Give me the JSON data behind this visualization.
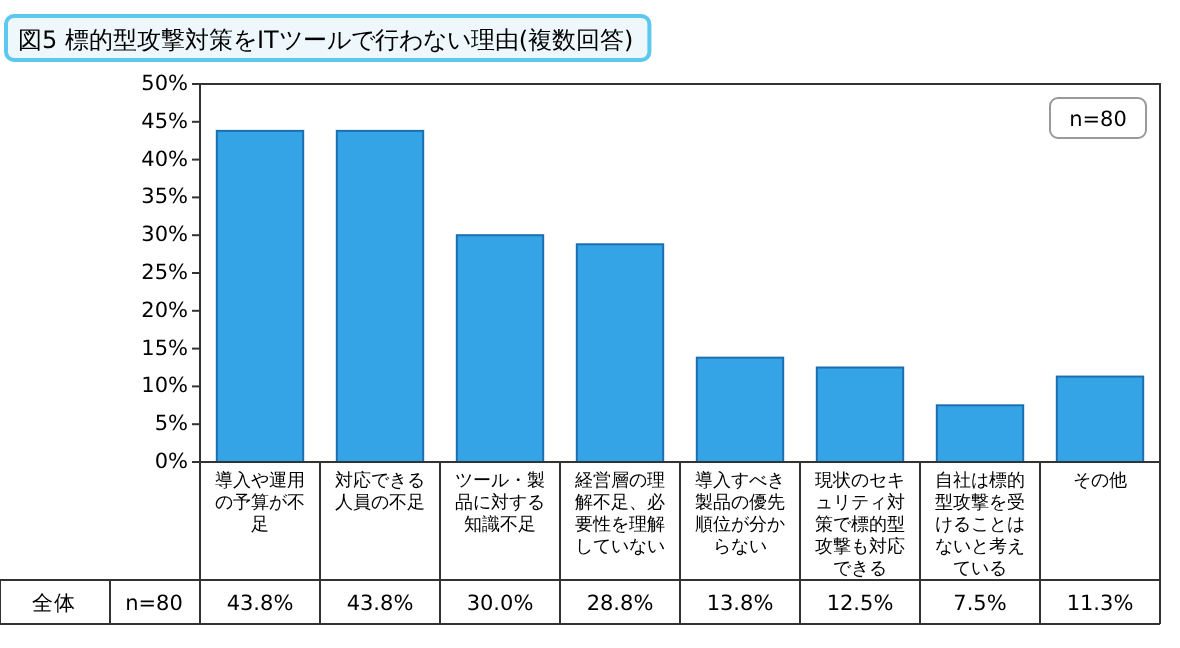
{
  "chart_data": {
    "type": "bar",
    "title": "図5 標的型攻撃対策をITツールで行わない理由(複数回答)",
    "categories": [
      "導入や運用の予算が不足",
      "対応できる人員の不足",
      "ツール・製品に対する知識不足",
      "経営層の理解不足、必要性を理解していない",
      "導入すべき製品の優先順位が分からない",
      "現状のセキュリティ対策で標的型攻撃も対応できる",
      "自社は標的型攻撃を受けることはないと考えている",
      "その他"
    ],
    "values": [
      43.8,
      43.8,
      30.0,
      28.8,
      13.8,
      12.5,
      7.5,
      11.3
    ],
    "value_labels": [
      "43.8%",
      "43.8%",
      "30.0%",
      "28.8%",
      "13.8%",
      "12.5%",
      "7.5%",
      "11.3%"
    ],
    "color": "#35a4e6",
    "ylim": [
      0,
      50
    ],
    "yticks": [
      {
        "value": 0,
        "label": "0%"
      },
      {
        "value": 5,
        "label": "5%"
      },
      {
        "value": 10,
        "label": "10%"
      },
      {
        "value": 15,
        "label": "15%"
      },
      {
        "value": 20,
        "label": "20%"
      },
      {
        "value": 25,
        "label": "25%"
      },
      {
        "value": 30,
        "label": "30%"
      },
      {
        "value": 35,
        "label": "35%"
      },
      {
        "value": 40,
        "label": "40%"
      },
      {
        "value": 45,
        "label": "45%"
      },
      {
        "value": 50,
        "label": "50%"
      }
    ],
    "annotations": [
      "n=80",
      "全体",
      "n=80"
    ]
  }
}
